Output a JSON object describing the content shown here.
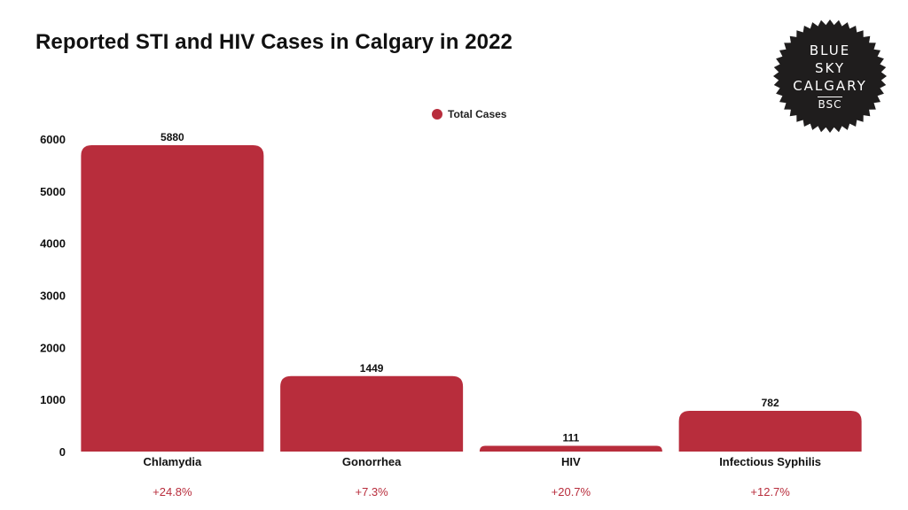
{
  "title": "Reported STI and HIV Cases in Calgary in 2022",
  "logo": {
    "lines": [
      "BLUE",
      "SKY",
      "CALGARY"
    ],
    "abbr": "BSC",
    "background_color": "#1f1d1d"
  },
  "legend": {
    "label": "Total Cases",
    "color": "#b82d3c"
  },
  "colors": {
    "bar": "#b82d3c",
    "change_text": "#b82d3c"
  },
  "chart_data": {
    "type": "bar",
    "title": "Reported STI and HIV Cases in Calgary in 2022",
    "categories": [
      "Chlamydia",
      "Gonorrhea",
      "HIV",
      "Infectious Syphilis"
    ],
    "series": [
      {
        "name": "Total Cases",
        "values": [
          5880,
          1449,
          111,
          782
        ]
      }
    ],
    "value_labels": [
      "5880",
      "1449",
      "111",
      "782"
    ],
    "change_labels": [
      "+24.8%",
      "+7.3%",
      "+20.7%",
      "+12.7%"
    ],
    "yticks": [
      0,
      1000,
      2000,
      3000,
      4000,
      5000,
      6000
    ],
    "ylim": [
      0,
      6000
    ],
    "xlabel": "",
    "ylabel": "",
    "grid": false,
    "legend_position": "top-center"
  }
}
